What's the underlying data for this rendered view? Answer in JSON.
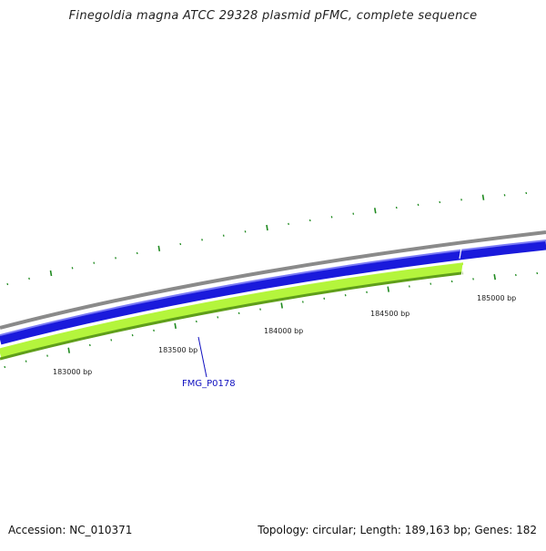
{
  "title": "Finegoldia magna ATCC 29328 plasmid pFMC, complete sequence",
  "accession": "Accession: NC_010371",
  "summary": "Topology: circular; Length: 189,163 bp; Genes: 182",
  "scale_labels": [
    "183000 bp",
    "183500 bp",
    "184000 bp",
    "184500 bp",
    "185000 bp"
  ],
  "gene_label": "FMG_P0178",
  "colors": {
    "backbone": "#8a8a8a",
    "forward_strand": "#1a1adc",
    "reverse_strand": "#b4f53c",
    "reverse_edge": "#5f9e1a",
    "tick": "#1f8a1f",
    "gene_label": "#1010c0"
  }
}
